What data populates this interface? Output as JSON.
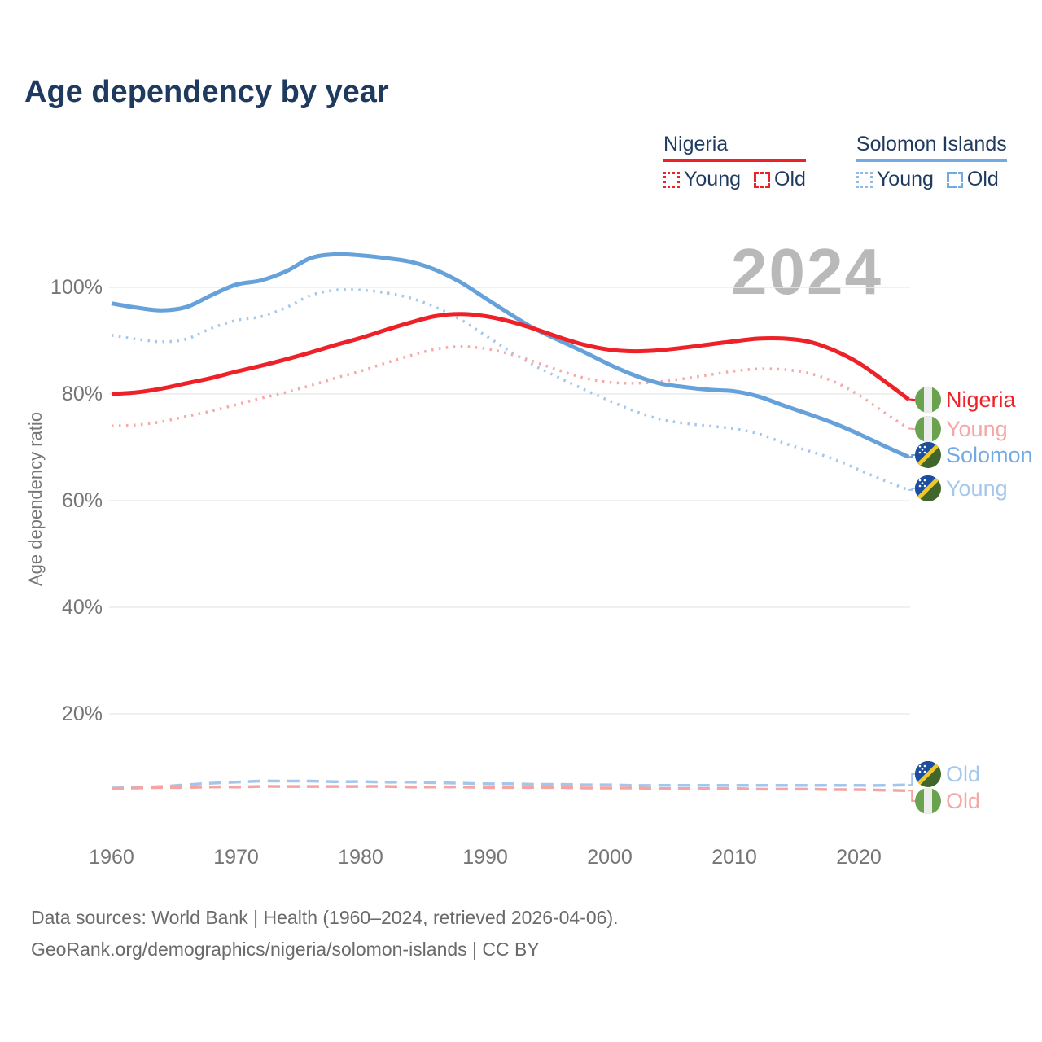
{
  "page": {
    "title": "Age dependency by year",
    "watermark_year": "2024"
  },
  "legend": {
    "groups": [
      {
        "label": "Nigeria",
        "accent_color": "#ee2128",
        "items": [
          {
            "label": "Young",
            "style": "dotted"
          },
          {
            "label": "Old",
            "style": "dashed"
          }
        ]
      },
      {
        "label": "Solomon Islands",
        "accent_color": "#74aae3",
        "items": [
          {
            "label": "Young",
            "style": "dotted"
          },
          {
            "label": "Old",
            "style": "dashed"
          }
        ]
      }
    ]
  },
  "chart_data": {
    "type": "line",
    "title": "Age dependency by year",
    "xlabel": "",
    "ylabel": "Age dependency ratio",
    "ylim": [
      0,
      110
    ],
    "yticks": [
      20,
      40,
      60,
      80,
      100
    ],
    "ytick_suffix": "%",
    "xticks": [
      1960,
      1970,
      1980,
      1990,
      2000,
      2010,
      2020
    ],
    "x_range": [
      1960,
      2024
    ],
    "grid": true,
    "legend_position": "top-right",
    "x": [
      1960,
      1962,
      1964,
      1966,
      1968,
      1970,
      1972,
      1974,
      1976,
      1978,
      1980,
      1982,
      1984,
      1986,
      1988,
      1990,
      1992,
      1994,
      1996,
      1998,
      2000,
      2002,
      2004,
      2006,
      2008,
      2010,
      2012,
      2014,
      2016,
      2018,
      2020,
      2022,
      2024
    ],
    "series": [
      {
        "key": "solomon-old",
        "name": "Solomon Islands",
        "component": "Old",
        "style": "dashed",
        "color": "#a3c6ec",
        "end_label": "Old",
        "flag": "solomon-islands",
        "values": [
          6.1,
          6.2,
          6.4,
          6.7,
          7.0,
          7.2,
          7.4,
          7.4,
          7.4,
          7.3,
          7.3,
          7.2,
          7.2,
          7.1,
          7.0,
          6.9,
          6.9,
          6.8,
          6.8,
          6.7,
          6.7,
          6.6,
          6.6,
          6.6,
          6.6,
          6.6,
          6.6,
          6.6,
          6.6,
          6.6,
          6.6,
          6.6,
          6.7
        ]
      },
      {
        "key": "nigeria-old",
        "name": "Nigeria",
        "component": "Old",
        "style": "dashed",
        "color": "#f5a4a2",
        "end_label": "Old",
        "flag": "nigeria",
        "values": [
          6.0,
          6.1,
          6.2,
          6.2,
          6.3,
          6.3,
          6.4,
          6.4,
          6.4,
          6.4,
          6.4,
          6.4,
          6.3,
          6.3,
          6.3,
          6.2,
          6.2,
          6.2,
          6.2,
          6.1,
          6.1,
          6.1,
          6.0,
          6.0,
          6.0,
          6.0,
          5.9,
          5.9,
          5.9,
          5.8,
          5.8,
          5.7,
          5.6
        ]
      },
      {
        "key": "solomon-young",
        "name": "Solomon Islands",
        "component": "Young",
        "style": "dotted",
        "color": "#a3c6ec",
        "end_label": "Young",
        "flag": "solomon-islands",
        "values": [
          91.0,
          90.3,
          89.8,
          90.3,
          92.3,
          93.8,
          94.5,
          96.2,
          98.5,
          99.5,
          99.5,
          99.0,
          98.0,
          96.3,
          94.0,
          91.0,
          88.0,
          85.3,
          83.0,
          80.8,
          78.7,
          76.8,
          75.3,
          74.5,
          74.0,
          73.5,
          72.5,
          70.8,
          69.3,
          67.8,
          65.8,
          63.8,
          62.0
        ]
      },
      {
        "key": "nigeria-young",
        "name": "Nigeria",
        "component": "Young",
        "style": "dotted",
        "color": "#f6a8a6",
        "end_label": "Young",
        "flag": "nigeria",
        "values": [
          74.0,
          74.2,
          74.8,
          75.8,
          76.8,
          78.0,
          79.2,
          80.3,
          81.6,
          83.0,
          84.3,
          85.8,
          87.2,
          88.4,
          88.9,
          88.5,
          87.5,
          86.0,
          84.4,
          83.0,
          82.2,
          82.0,
          82.3,
          82.9,
          83.6,
          84.3,
          84.7,
          84.6,
          83.9,
          82.3,
          79.8,
          76.6,
          73.5
        ]
      },
      {
        "key": "solomon-total",
        "name": "Solomon Islands",
        "component": "Total",
        "style": "solid",
        "color": "#66a1da",
        "end_label": "Solomon",
        "flag": "solomon-islands",
        "values": [
          97.0,
          96.2,
          95.7,
          96.3,
          98.5,
          100.5,
          101.3,
          103.0,
          105.5,
          106.2,
          106.0,
          105.5,
          104.8,
          103.3,
          101.0,
          98.0,
          95.0,
          92.2,
          90.0,
          87.8,
          85.5,
          83.5,
          82.0,
          81.3,
          80.8,
          80.5,
          79.5,
          77.8,
          76.2,
          74.5,
          72.5,
          70.3,
          68.2
        ]
      },
      {
        "key": "nigeria-total",
        "name": "Nigeria",
        "component": "Total",
        "style": "solid",
        "color": "#ee2128",
        "end_label": "Nigeria",
        "flag": "nigeria",
        "values": [
          80.0,
          80.3,
          81.0,
          82.0,
          83.0,
          84.2,
          85.3,
          86.5,
          87.8,
          89.2,
          90.5,
          92.0,
          93.4,
          94.6,
          95.0,
          94.6,
          93.6,
          92.2,
          90.6,
          89.2,
          88.3,
          88.0,
          88.2,
          88.7,
          89.3,
          89.9,
          90.4,
          90.4,
          89.8,
          88.2,
          85.8,
          82.5,
          79.0
        ]
      }
    ]
  },
  "footer": {
    "line1": "Data sources: World Bank | Health (1960–2024, retrieved 2026-04-06).",
    "line2": "GeoRank.org/demographics/nigeria/solomon-islands | CC BY"
  }
}
